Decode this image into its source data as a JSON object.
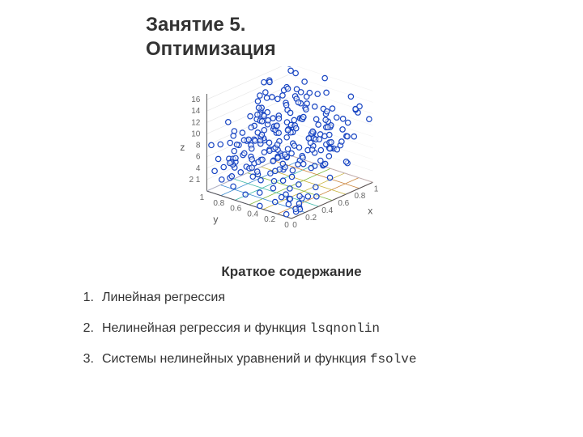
{
  "title_line1": "Занятие 5.",
  "title_line2": "Оптимизация",
  "chart": {
    "type": "scatter-3d",
    "axis_labels": {
      "x": "x",
      "y": "y",
      "z": "z"
    },
    "x_ticks": [
      "0",
      "0.2",
      "0.4",
      "0.6",
      "0.8",
      "1"
    ],
    "y_ticks": [
      "0",
      "0.2",
      "0.4",
      "0.6",
      "0.8",
      "1"
    ],
    "z_ticks": [
      "2",
      "4",
      "6",
      "8",
      "10",
      "12",
      "14",
      "16"
    ],
    "z_tick_label_first": "2 1",
    "xlim": [
      0,
      1
    ],
    "ylim": [
      0,
      1
    ],
    "zlim": [
      0,
      17
    ],
    "n_points": 260,
    "point_marker": "circle",
    "point_size": 3.2,
    "point_stroke_color": "#1744c2",
    "point_fill_color": "#ffffff",
    "point_stroke_width": 1.2,
    "axis_line_color": "#555555",
    "tick_label_color": "#666666",
    "tick_label_fontsize": 10,
    "grid_colors": [
      "#c74444",
      "#cc8840",
      "#c9b43c",
      "#7eb83c",
      "#3fb8a8",
      "#3a8bd0",
      "#4b56d6"
    ],
    "grid_line_width": 0.8,
    "background_color": "#ffffff"
  },
  "summary_heading": "Краткое содержание",
  "toc": [
    {
      "n": "1.",
      "text": "Линейная регрессия",
      "code": ""
    },
    {
      "n": "2.",
      "text": "Нелинейная регрессия и функция ",
      "code": "lsqnonlin"
    },
    {
      "n": "3.",
      "text": "Системы нелинейных уравнений и функция ",
      "code": "fsolve"
    }
  ]
}
